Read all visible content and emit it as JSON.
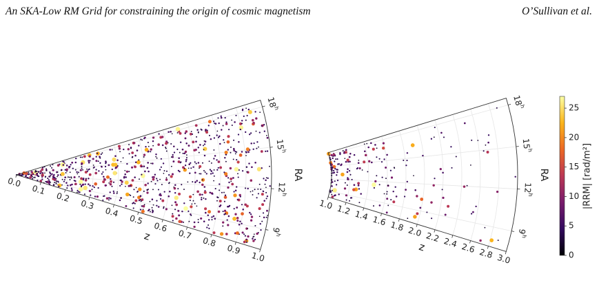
{
  "header": {
    "title": "An SKA-Low RM Grid for constraining the origin of cosmic magnetism",
    "authors": "O’Sullivan et al."
  },
  "chart_data": [
    {
      "type": "scatter",
      "projection": "polar-wedge",
      "xlabel": "z",
      "ylabel": "RA",
      "xlim": [
        0.0,
        1.0
      ],
      "ylim_hours": [
        7.5,
        18.5
      ],
      "x_ticks": [
        "0.0",
        "0.1",
        "0.2",
        "0.3",
        "0.4",
        "0.5",
        "0.6",
        "0.7",
        "0.8",
        "0.9",
        "1.0"
      ],
      "ra_ticks": [
        {
          "base": "9",
          "sup": "h"
        },
        {
          "base": "12",
          "sup": "h"
        },
        {
          "base": "15",
          "sup": "h"
        },
        {
          "base": "18",
          "sup": "h"
        }
      ],
      "grid": true,
      "n_points": 900
    },
    {
      "type": "scatter",
      "projection": "polar-wedge",
      "xlabel": "z",
      "ylabel": "RA",
      "xlim": [
        1.0,
        3.0
      ],
      "ylim_hours": [
        7.5,
        18.5
      ],
      "x_ticks": [
        "1.0",
        "1.2",
        "1.4",
        "1.6",
        "1.8",
        "2.0",
        "2.2",
        "2.4",
        "2.6",
        "2.8",
        "3.0"
      ],
      "ra_ticks": [
        {
          "base": "9",
          "sup": "h"
        },
        {
          "base": "12",
          "sup": "h"
        },
        {
          "base": "15",
          "sup": "h"
        },
        {
          "base": "18",
          "sup": "h"
        }
      ],
      "grid": true,
      "n_points": 220
    }
  ],
  "colorbar": {
    "label": "|RRM| [rad/m²]",
    "range": [
      0,
      27
    ],
    "ticks": [
      "0",
      "5",
      "10",
      "15",
      "20",
      "25"
    ],
    "tick_values": [
      0,
      5,
      10,
      15,
      20,
      25
    ],
    "colormap": "inferno",
    "stops": [
      "#000004",
      "#320a5e",
      "#781b6c",
      "#bb3754",
      "#ec6824",
      "#fbb41a",
      "#fcffa4"
    ]
  }
}
